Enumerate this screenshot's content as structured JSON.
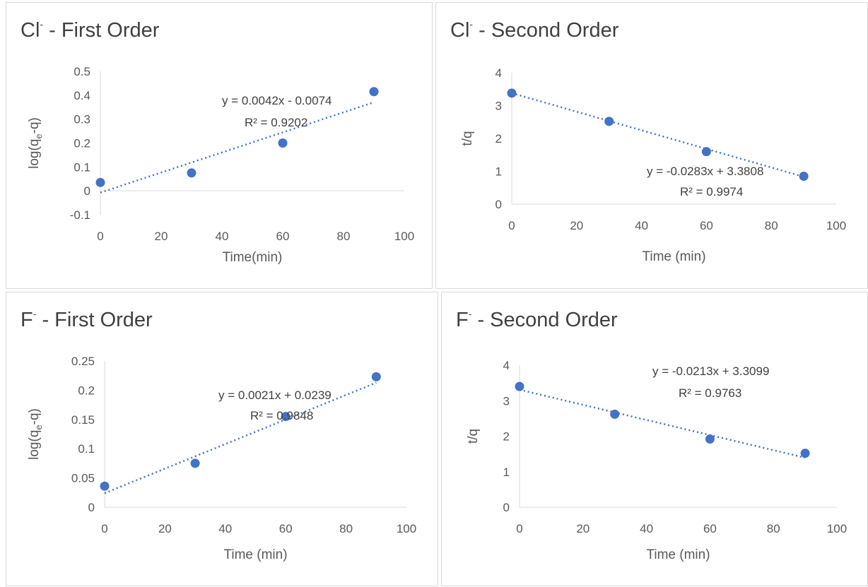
{
  "chart_data": [
    {
      "type": "scatter",
      "title": {
        "ion": "Cl",
        "charge": "-",
        "rest": " - First Order"
      },
      "xlabel": "Time(min)",
      "ylabel": {
        "pre": "log(q",
        "sub": "e",
        "post": "-q)"
      },
      "xlim": [
        0,
        100
      ],
      "ylim": [
        -0.1,
        0.5
      ],
      "xticks": [
        "0",
        "20",
        "40",
        "60",
        "80",
        "100"
      ],
      "yticks": [
        "-0.1",
        "0",
        "0.1",
        "0.2",
        "0.3",
        "0.4",
        "0.5"
      ],
      "x": [
        0,
        30,
        60,
        90
      ],
      "y": [
        0.035,
        0.075,
        0.2,
        0.415
      ],
      "trendline": {
        "slope": 0.0042,
        "intercept": -0.0074,
        "equation": "y = 0.0042x - 0.0074",
        "r2": "R² = 0.9202"
      },
      "grid": false,
      "legend": "none",
      "marker_color": "#4472C4"
    },
    {
      "type": "scatter",
      "title": {
        "ion": "Cl",
        "charge": "-",
        "rest": " - Second Order"
      },
      "xlabel": "Time (min)",
      "ylabel": {
        "pre": "t/q",
        "sub": "",
        "post": ""
      },
      "xlim": [
        0,
        100
      ],
      "ylim": [
        0,
        4
      ],
      "xticks": [
        "0",
        "20",
        "40",
        "60",
        "80",
        "100"
      ],
      "yticks": [
        "0",
        "1",
        "2",
        "3",
        "4"
      ],
      "x": [
        0,
        30,
        60,
        90
      ],
      "y": [
        3.38,
        2.52,
        1.6,
        0.85
      ],
      "trendline": {
        "slope": -0.0283,
        "intercept": 3.3808,
        "equation": "y = -0.0283x + 3.3808",
        "r2": "R² = 0.9974"
      },
      "grid": false,
      "legend": "none",
      "marker_color": "#4472C4"
    },
    {
      "type": "scatter",
      "title": {
        "ion": "F",
        "charge": "-",
        "rest": " - First Order"
      },
      "xlabel": "Time (min)",
      "ylabel": {
        "pre": "log(q",
        "sub": "e",
        "post": "-q)"
      },
      "xlim": [
        0,
        100
      ],
      "ylim": [
        0,
        0.25
      ],
      "xticks": [
        "0",
        "20",
        "40",
        "60",
        "80",
        "100"
      ],
      "yticks": [
        "0",
        "0.05",
        "0.1",
        "0.15",
        "0.2",
        "0.25"
      ],
      "x": [
        0,
        30,
        60,
        90
      ],
      "y": [
        0.036,
        0.075,
        0.155,
        0.223
      ],
      "trendline": {
        "slope": 0.0021,
        "intercept": 0.0239,
        "equation": "y = 0.0021x + 0.0239",
        "r2": "R² = 0.9848"
      },
      "grid": false,
      "legend": "none",
      "marker_color": "#4472C4"
    },
    {
      "type": "scatter",
      "title": {
        "ion": "F",
        "charge": "-",
        "rest": " - Second Order"
      },
      "xlabel": "Time (min)",
      "ylabel": {
        "pre": "t/q",
        "sub": "",
        "post": ""
      },
      "xlim": [
        0,
        100
      ],
      "ylim": [
        0,
        4
      ],
      "xticks": [
        "0",
        "20",
        "40",
        "60",
        "80",
        "100"
      ],
      "yticks": [
        "0",
        "1",
        "2",
        "3",
        "4"
      ],
      "x": [
        0,
        30,
        60,
        90
      ],
      "y": [
        3.4,
        2.62,
        1.92,
        1.52
      ],
      "trendline": {
        "slope": -0.0213,
        "intercept": 3.3099,
        "equation": "y = -0.0213x + 3.3099",
        "r2": "R² = 0.9763"
      },
      "grid": false,
      "legend": "none",
      "marker_color": "#4472C4"
    }
  ]
}
